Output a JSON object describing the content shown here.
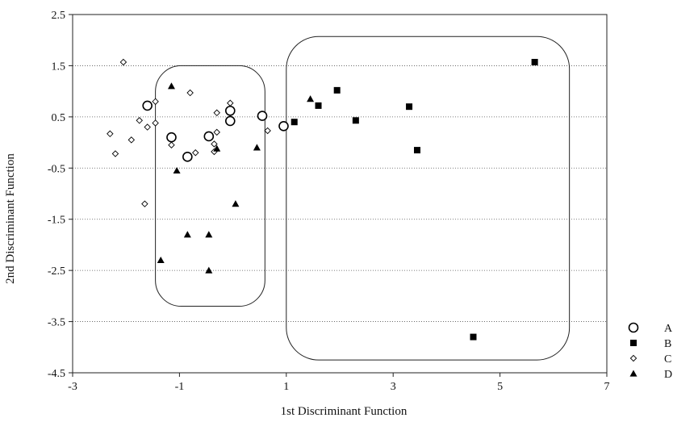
{
  "chart_data": {
    "type": "scatter",
    "xlabel": "1st Discriminant Function",
    "ylabel": "2nd Discriminant Function",
    "xlim": [
      -3,
      7
    ],
    "ylim": [
      -4.5,
      2.5
    ],
    "x_ticks": [
      -3,
      -1,
      1,
      3,
      5,
      7
    ],
    "y_ticks": [
      2.5,
      1.5,
      0.5,
      -0.5,
      -1.5,
      -2.5,
      -3.5,
      -4.5
    ],
    "grid": "horizontal dotted",
    "legend": "right, outside plot area",
    "series": [
      {
        "name": "A",
        "marker": "open-circle",
        "points": [
          [
            -1.6,
            0.72
          ],
          [
            -1.15,
            0.1
          ],
          [
            -0.85,
            -0.28
          ],
          [
            -0.45,
            0.12
          ],
          [
            -0.05,
            0.62
          ],
          [
            -0.05,
            0.42
          ],
          [
            0.55,
            0.52
          ],
          [
            0.95,
            0.32
          ]
        ]
      },
      {
        "name": "B",
        "marker": "filled-square",
        "points": [
          [
            1.15,
            0.4
          ],
          [
            1.6,
            0.72
          ],
          [
            1.95,
            1.02
          ],
          [
            2.3,
            0.43
          ],
          [
            3.3,
            0.7
          ],
          [
            3.45,
            -0.15
          ],
          [
            4.5,
            -3.8
          ],
          [
            5.65,
            1.57
          ]
        ]
      },
      {
        "name": "C",
        "marker": "open-diamond",
        "points": [
          [
            -2.3,
            0.17
          ],
          [
            -2.05,
            1.57
          ],
          [
            -1.9,
            0.05
          ],
          [
            -2.2,
            -0.22
          ],
          [
            -1.75,
            0.43
          ],
          [
            -1.65,
            -1.2
          ],
          [
            -1.45,
            0.8
          ],
          [
            -1.45,
            0.38
          ],
          [
            -1.6,
            0.3
          ],
          [
            -1.15,
            -0.05
          ],
          [
            -0.8,
            0.97
          ],
          [
            -0.7,
            -0.2
          ],
          [
            -0.3,
            0.2
          ],
          [
            -0.3,
            0.58
          ],
          [
            -0.05,
            0.77
          ],
          [
            -0.35,
            -0.03
          ],
          [
            -0.35,
            -0.18
          ],
          [
            0.65,
            0.23
          ]
        ]
      },
      {
        "name": "D",
        "marker": "filled-triangle",
        "points": [
          [
            -1.15,
            1.1
          ],
          [
            -1.05,
            -0.55
          ],
          [
            -1.35,
            -2.3
          ],
          [
            -0.85,
            -1.8
          ],
          [
            -0.3,
            -0.12
          ],
          [
            -0.45,
            -1.8
          ],
          [
            -0.45,
            -2.5
          ],
          [
            0.05,
            -1.2
          ],
          [
            0.45,
            -0.1
          ],
          [
            1.45,
            0.85
          ]
        ]
      }
    ],
    "regions": [
      {
        "x0": -1.45,
        "x1": 0.6,
        "y0": -3.2,
        "y1": 1.5,
        "style": "rounded-rectangle outline"
      },
      {
        "x0": 1.0,
        "x1": 6.3,
        "y0": -4.25,
        "y1": 2.07,
        "style": "rounded-rectangle outline"
      }
    ]
  }
}
